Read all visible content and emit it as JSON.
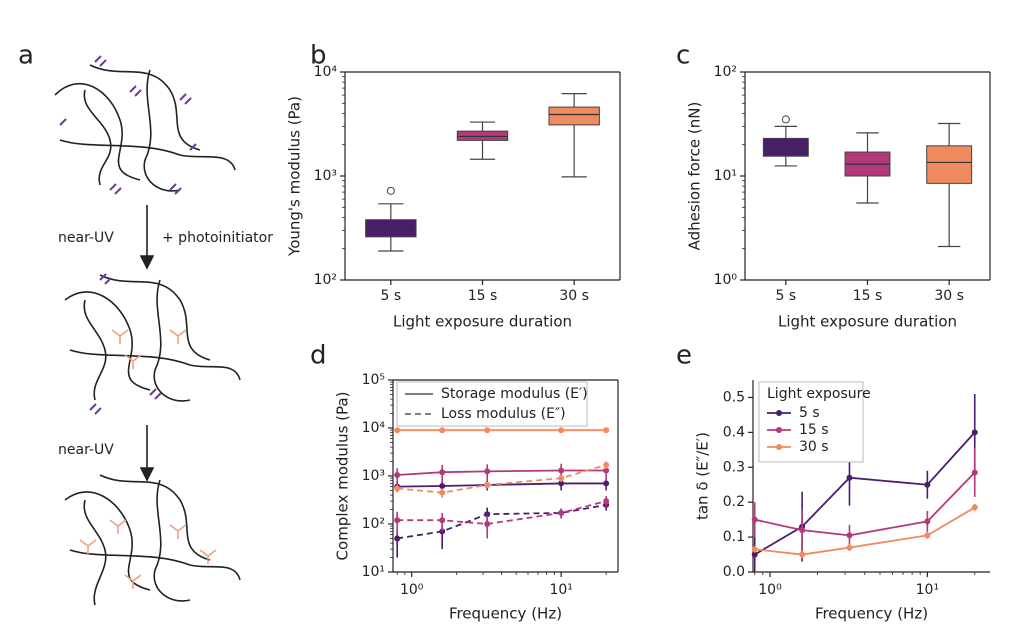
{
  "diagram": {
    "panel_label": "a",
    "arrow1_labels": [
      "near-UV",
      "+ photoinitiator"
    ],
    "arrow2_label": "near-UV"
  },
  "chart_data": [
    {
      "type": "box",
      "panel_label": "b",
      "ylabel": "Young's modulus (Pa)",
      "xlabel": "Light exposure duration",
      "categories": [
        "5 s",
        "15 s",
        "30 s"
      ],
      "colors": [
        "#4b1d6e",
        "#b4397a",
        "#f08a5f"
      ],
      "boxes": [
        {
          "whislo": 190,
          "q1": 260,
          "med": 310,
          "q3": 380,
          "whishi": 540,
          "fliers": [
            720
          ]
        },
        {
          "whislo": 1450,
          "q1": 2200,
          "med": 2400,
          "q3": 2700,
          "whishi": 3300,
          "fliers": []
        },
        {
          "whislo": 980,
          "q1": 3100,
          "med": 3900,
          "q3": 4600,
          "whishi": 6200,
          "fliers": []
        }
      ],
      "yscale": "log",
      "ylim": [
        100,
        10000
      ],
      "yticks": [
        {
          "value": 100,
          "label": "10²"
        },
        {
          "value": 1000,
          "label": "10³"
        },
        {
          "value": 10000,
          "label": "10⁴"
        }
      ],
      "frame": "box"
    },
    {
      "type": "box",
      "panel_label": "c",
      "ylabel": "Adhesion force (nN)",
      "xlabel": "Light exposure duration",
      "categories": [
        "5 s",
        "15 s",
        "30 s"
      ],
      "colors": [
        "#4b1d6e",
        "#b4397a",
        "#f08a5f"
      ],
      "boxes": [
        {
          "whislo": 12.5,
          "q1": 15.5,
          "med": 18.5,
          "q3": 23,
          "whishi": 30,
          "fliers": [
            35
          ]
        },
        {
          "whislo": 5.5,
          "q1": 10,
          "med": 13,
          "q3": 17,
          "whishi": 26,
          "fliers": []
        },
        {
          "whislo": 2.1,
          "q1": 8.5,
          "med": 13.5,
          "q3": 19.5,
          "whishi": 32,
          "fliers": []
        }
      ],
      "yscale": "log",
      "ylim": [
        1,
        100
      ],
      "yticks": [
        {
          "value": 1,
          "label": "10⁰"
        },
        {
          "value": 10,
          "label": "10¹"
        },
        {
          "value": 100,
          "label": "10²"
        }
      ],
      "frame": "box"
    },
    {
      "type": "line",
      "panel_label": "d",
      "ylabel": "Complex modulus (Pa)",
      "xlabel": "Frequency (Hz)",
      "xscale": "log",
      "yscale": "log",
      "xlim": [
        0.75,
        24
      ],
      "ylim": [
        10,
        100000
      ],
      "xticks": [
        {
          "value": 1,
          "label": "10⁰"
        },
        {
          "value": 10,
          "label": "10¹"
        }
      ],
      "yticks": [
        {
          "value": 10,
          "label": "10¹"
        },
        {
          "value": 100,
          "label": "10²"
        },
        {
          "value": 1000,
          "label": "10³"
        },
        {
          "value": 10000,
          "label": "10⁴"
        },
        {
          "value": 100000,
          "label": "10⁵"
        }
      ],
      "x": [
        0.8,
        1.6,
        3.2,
        10,
        20
      ],
      "series": [
        {
          "color": "#4b1d6e",
          "line_style": "solid",
          "values": [
            600,
            620,
            650,
            700,
            700
          ],
          "errors": [
            100,
            150,
            150,
            200,
            200
          ]
        },
        {
          "color": "#b4397a",
          "line_style": "solid",
          "values": [
            1050,
            1200,
            1250,
            1300,
            1300
          ],
          "errors": [
            400,
            500,
            500,
            500,
            500
          ]
        },
        {
          "color": "#f08a5f",
          "line_style": "solid",
          "values": [
            9000,
            9000,
            9000,
            9000,
            9000
          ],
          "errors": [
            500,
            500,
            500,
            500,
            500
          ]
        },
        {
          "color": "#4b1d6e",
          "line_style": "dashed",
          "values": [
            50,
            70,
            160,
            170,
            250
          ],
          "errors": [
            30,
            40,
            60,
            40,
            60
          ]
        },
        {
          "color": "#b4397a",
          "line_style": "dashed",
          "values": [
            120,
            120,
            100,
            170,
            300
          ],
          "errors": [
            60,
            50,
            50,
            40,
            80
          ]
        },
        {
          "color": "#f08a5f",
          "line_style": "dashed",
          "values": [
            550,
            450,
            650,
            900,
            1700
          ],
          "errors": [
            100,
            100,
            100,
            150,
            300
          ]
        }
      ],
      "legend": [
        {
          "label": "Storage modulus (E′)",
          "line_style": "solid"
        },
        {
          "label": "Loss modulus (E″)",
          "line_style": "dashed"
        }
      ],
      "frame": "box"
    },
    {
      "type": "line",
      "panel_label": "e",
      "ylabel": "tan δ (E″/E′)",
      "xlabel": "Frequency (Hz)",
      "xscale": "log",
      "yscale": "linear",
      "xlim": [
        0.78,
        25
      ],
      "ylim": [
        0,
        0.55
      ],
      "xticks": [
        {
          "value": 1,
          "label": "10⁰"
        },
        {
          "value": 10,
          "label": "10¹"
        }
      ],
      "yticks": [
        {
          "value": 0,
          "label": "0.0"
        },
        0.1,
        0.2,
        0.3,
        0.4,
        0.5
      ],
      "x": [
        0.8,
        1.6,
        3.2,
        10,
        20
      ],
      "legend_title": "Light exposure",
      "series": [
        {
          "name": "5 s",
          "color": "#4b1d6e",
          "line_style": "solid",
          "values": [
            0.05,
            0.13,
            0.27,
            0.25,
            0.4
          ],
          "errors": [
            0.06,
            0.1,
            0.08,
            0.04,
            0.11
          ]
        },
        {
          "name": "15 s",
          "color": "#b4397a",
          "line_style": "solid",
          "values": [
            0.15,
            0.12,
            0.105,
            0.145,
            0.285
          ],
          "errors": [
            0.05,
            0.06,
            0.03,
            0.03,
            0.07
          ]
        },
        {
          "name": "30 s",
          "color": "#f08a5f",
          "line_style": "solid",
          "values": [
            0.065,
            0.05,
            0.07,
            0.105,
            0.185
          ],
          "errors": [
            0.01,
            0.01,
            0.01,
            0.01,
            0.01
          ]
        }
      ],
      "frame": "left-bottom"
    }
  ]
}
